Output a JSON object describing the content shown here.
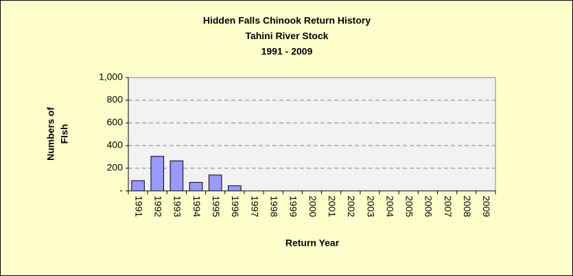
{
  "chart_data": {
    "type": "bar",
    "title": [
      "Hidden Falls Chinook Return History",
      "Tahini River Stock",
      "1991 - 2009"
    ],
    "xlabel": "Return Year",
    "ylabel": [
      "Numbers of",
      "FIsh"
    ],
    "categories": [
      "1991",
      "1992",
      "1993",
      "1994",
      "1995",
      "1996",
      "1997",
      "1998",
      "1999",
      "2000",
      "2001",
      "2002",
      "2003",
      "2004",
      "2005",
      "2006",
      "2007",
      "2008",
      "2009"
    ],
    "values": [
      90,
      305,
      265,
      75,
      140,
      45,
      0,
      0,
      0,
      0,
      0,
      0,
      0,
      0,
      0,
      0,
      0,
      0,
      0
    ],
    "color": "#9999ff",
    "ylim": [
      0,
      1000
    ],
    "yticks": [
      {
        "value": 0,
        "label": "-"
      },
      200,
      400,
      600,
      800,
      {
        "value": 1000,
        "label": "1,000"
      }
    ],
    "grid": true
  }
}
